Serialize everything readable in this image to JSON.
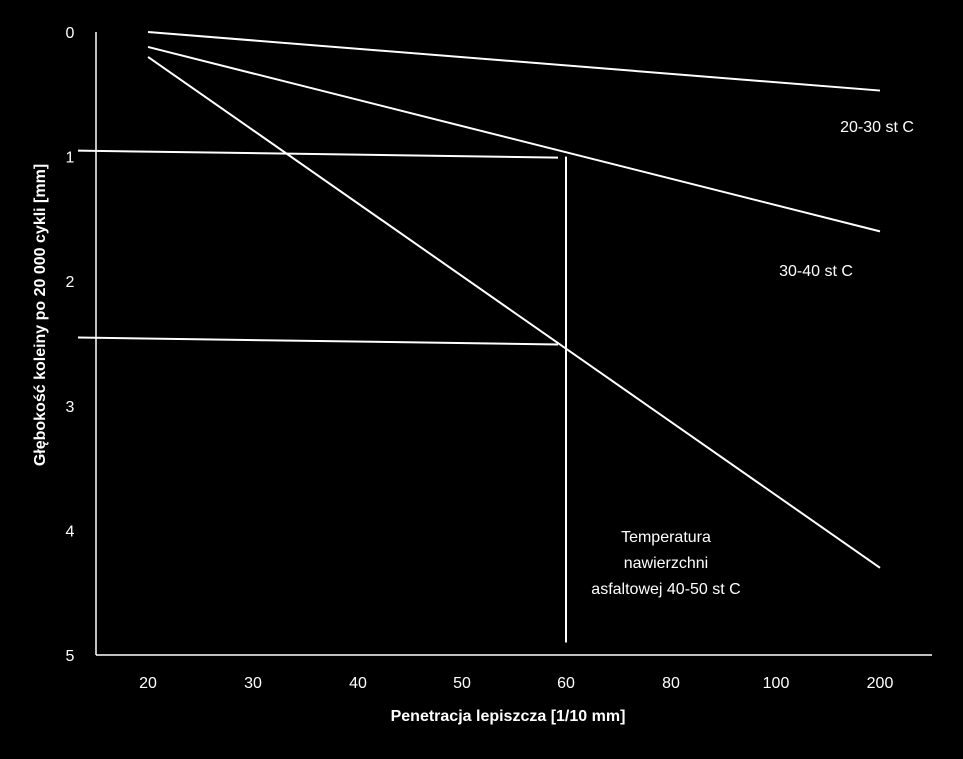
{
  "chart_data": {
    "type": "line",
    "xlabel": "Penetracja lepiszcza [1/10 mm]",
    "ylabel": "Głębokość koleiny  po 20 000 cykli [mm]",
    "x_ticks": [
      "20",
      "30",
      "40",
      "50",
      "60",
      "80",
      "100",
      "200"
    ],
    "y_ticks": [
      "0",
      "1",
      "2",
      "3",
      "4",
      "5"
    ],
    "ylim": [
      0,
      5
    ],
    "y_inverted": true,
    "grid": false,
    "legend": "none",
    "colors": {
      "background": "#000000",
      "line": "#ffffff",
      "text": "#ffffff"
    },
    "series": [
      {
        "name": "20-30 st C",
        "x": [
          "20",
          "200"
        ],
        "values": [
          0.0,
          0.47
        ]
      },
      {
        "name": "30-40 st C",
        "x": [
          "20",
          "200"
        ],
        "values": [
          0.12,
          1.6
        ]
      },
      {
        "name_lines": [
          "Temperatura",
          "nawierzchni",
          "asfaltowej 40-50 st C"
        ],
        "x": [
          "20",
          "200"
        ],
        "values": [
          0.2,
          4.3
        ]
      }
    ],
    "reference_lines": [
      {
        "x": "60",
        "y_from": 1.0,
        "y_to": 4.9
      },
      {
        "y": 1.0,
        "x_to": "60"
      },
      {
        "y": 2.5,
        "x_to": "60"
      }
    ]
  }
}
